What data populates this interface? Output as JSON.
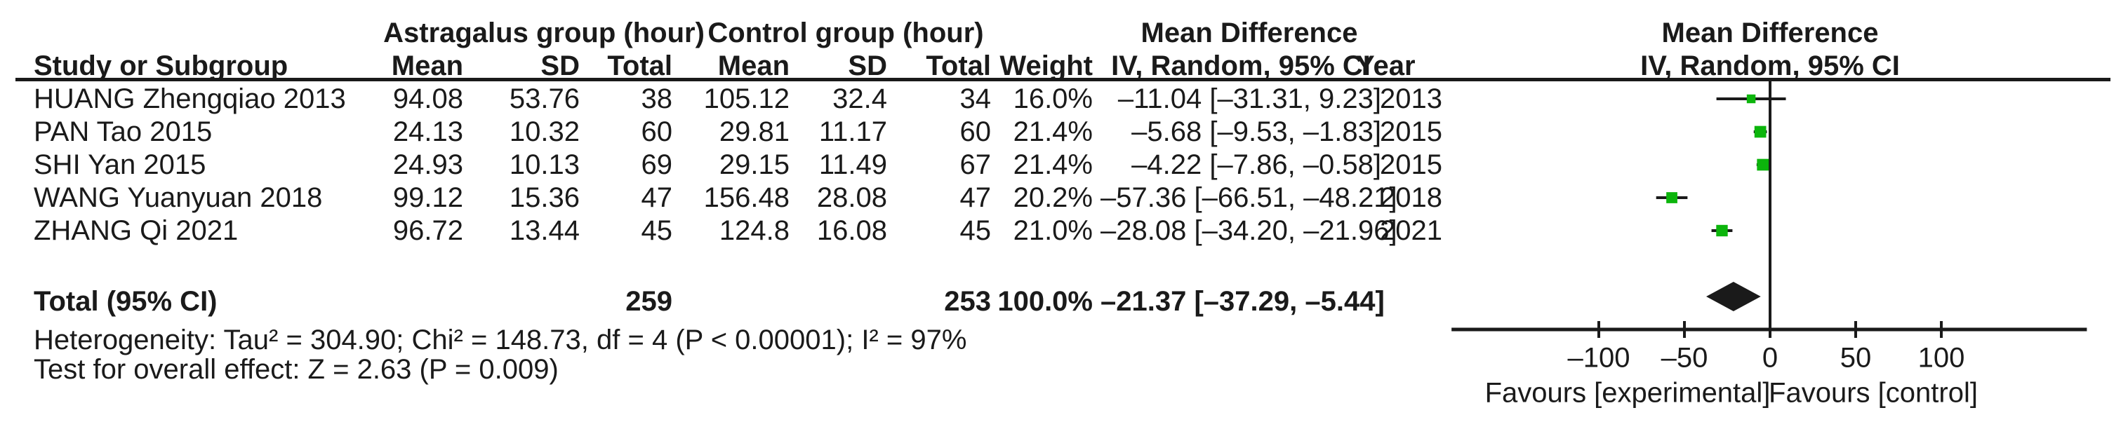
{
  "table": {
    "group1_header": "Astragalus group (hour)",
    "group2_header": "Control group (hour)",
    "md_header_left": "Mean Difference",
    "md_header_right": "Mean Difference",
    "col_headers": {
      "study": "Study or Subgroup",
      "mean1": "Mean",
      "sd1": "SD",
      "total1": "Total",
      "mean2": "Mean",
      "sd2": "SD",
      "total2": "Total",
      "weight": "Weight",
      "ci": "IV, Random, 95% CI",
      "year": "Year",
      "plot_ci": "IV, Random, 95% CI"
    },
    "studies": [
      {
        "name": "HUANG Zhengqiao 2013",
        "mean1": "94.08",
        "sd1": "53.76",
        "total1": "38",
        "mean2": "105.12",
        "sd2": "32.4",
        "total2": "34",
        "weight": "16.0%",
        "ci": "–11.04 [–31.31, 9.23]",
        "year": "2013"
      },
      {
        "name": "PAN Tao 2015",
        "mean1": "24.13",
        "sd1": "10.32",
        "total1": "60",
        "mean2": "29.81",
        "sd2": "11.17",
        "total2": "60",
        "weight": "21.4%",
        "ci": "–5.68 [–9.53, –1.83]",
        "year": "2015"
      },
      {
        "name": "SHI Yan 2015",
        "mean1": "24.93",
        "sd1": "10.13",
        "total1": "69",
        "mean2": "29.15",
        "sd2": "11.49",
        "total2": "67",
        "weight": "21.4%",
        "ci": "–4.22 [–7.86, –0.58]",
        "year": "2015"
      },
      {
        "name": "WANG Yuanyuan 2018",
        "mean1": "99.12",
        "sd1": "15.36",
        "total1": "47",
        "mean2": "156.48",
        "sd2": "28.08",
        "total2": "47",
        "weight": "20.2%",
        "ci": "–57.36 [–66.51, –48.21]",
        "year": "2018"
      },
      {
        "name": "ZHANG Qi 2021",
        "mean1": "96.72",
        "sd1": "13.44",
        "total1": "45",
        "mean2": "124.8",
        "sd2": "16.08",
        "total2": "45",
        "weight": "21.0%",
        "ci": "–28.08 [–34.20, –21.96]",
        "year": "2021"
      }
    ],
    "total_row": {
      "label": "Total (95% CI)",
      "total1": "259",
      "total2": "253",
      "weight": "100.0%",
      "ci": "–21.37 [–37.29, –5.44]"
    },
    "heterogeneity": "Heterogeneity: Tau² = 304.90; Chi² = 148.73, df = 4 (P < 0.00001); I² = 97%",
    "overall_effect": "Test for overall effect: Z = 2.63 (P = 0.009)"
  },
  "chart_data": {
    "type": "scatter",
    "subtype": "forest-plot",
    "title": "Mean Difference",
    "effect_model": "IV, Random, 95% CI",
    "x_ticks": [
      -100,
      -50,
      0,
      50,
      100
    ],
    "x_range": [
      -186,
      185
    ],
    "favours_left": "Favours [experimental]",
    "favours_right": "Favours [control]",
    "marker_color": "#0CB50C",
    "line_color": "#1a1a1a",
    "studies": [
      {
        "name": "HUANG Zhengqiao 2013",
        "md": -11.04,
        "ci_low": -31.31,
        "ci_high": 9.23,
        "weight_pct": 16.0,
        "year": 2013
      },
      {
        "name": "PAN Tao 2015",
        "md": -5.68,
        "ci_low": -9.53,
        "ci_high": -1.83,
        "weight_pct": 21.4,
        "year": 2015
      },
      {
        "name": "SHI Yan 2015",
        "md": -4.22,
        "ci_low": -7.86,
        "ci_high": -0.58,
        "weight_pct": 21.4,
        "year": 2015
      },
      {
        "name": "WANG Yuanyuan 2018",
        "md": -57.36,
        "ci_low": -66.51,
        "ci_high": -48.21,
        "weight_pct": 20.2,
        "year": 2018
      },
      {
        "name": "ZHANG Qi 2021",
        "md": -28.08,
        "ci_low": -34.2,
        "ci_high": -21.96,
        "weight_pct": 21.0,
        "year": 2021
      }
    ],
    "total": {
      "md": -21.37,
      "ci_low": -37.29,
      "ci_high": -5.44
    }
  }
}
